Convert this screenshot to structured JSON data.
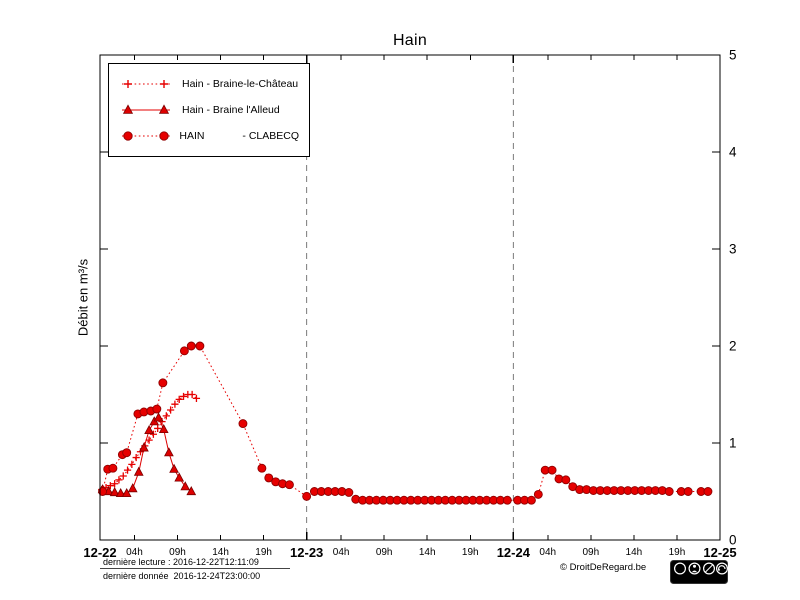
{
  "title": "Hain",
  "y_axis": {
    "label": "Débit en m³/s",
    "ticks": [
      "0",
      "1",
      "2",
      "3",
      "4",
      "5"
    ],
    "min": 0,
    "max": 5
  },
  "x_axis": {
    "major_ticks": [
      {
        "hour": 0,
        "label": "12-22"
      },
      {
        "hour": 24,
        "label": "12-23"
      },
      {
        "hour": 48,
        "label": "12-24"
      },
      {
        "hour": 72,
        "label": "12-25"
      }
    ],
    "minor_ticks": [
      {
        "hour": 4,
        "label": "04h"
      },
      {
        "hour": 9,
        "label": "09h"
      },
      {
        "hour": 14,
        "label": "14h"
      },
      {
        "hour": 19,
        "label": "19h"
      },
      {
        "hour": 28,
        "label": "04h"
      },
      {
        "hour": 33,
        "label": "09h"
      },
      {
        "hour": 38,
        "label": "14h"
      },
      {
        "hour": 43,
        "label": "19h"
      },
      {
        "hour": 52,
        "label": "04h"
      },
      {
        "hour": 57,
        "label": "09h"
      },
      {
        "hour": 62,
        "label": "14h"
      },
      {
        "hour": 67,
        "label": "19h"
      }
    ]
  },
  "legend": [
    {
      "label": "Hain - Braine-le-Château",
      "marker": "plus",
      "line": "dotted"
    },
    {
      "label": "Hain - Braine l'Alleud",
      "marker": "triangle",
      "line": "solid"
    },
    {
      "label": "HAIN             - CLABECQ",
      "marker": "circle",
      "line": "dotted"
    }
  ],
  "footer": {
    "last_reading": "dernière lecture : 2016-12-22T12:11:09",
    "last_data": "dernière donnée  2016-12-24T23:00:00",
    "copyright": "© DroitDeRegard.be",
    "license": {
      "cc": "cc",
      "by": "BY",
      "nc": "NC",
      "sa": "SA"
    }
  },
  "colors": {
    "series_red": "#e60000",
    "marker_edge": "#8f0000",
    "grid": "#6b6b6b",
    "frame": "#000000"
  },
  "chart_data": {
    "type": "line",
    "title": "Hain",
    "xlabel": "",
    "ylabel": "Débit en m³/s",
    "ylim": [
      0,
      5
    ],
    "xlim_hours": [
      0,
      72
    ],
    "x_origin": "2016-12-22 00:00",
    "grid": "vertical dashed lines at day boundaries (12-23, 12-24)",
    "legend_position": "top-left",
    "series": [
      {
        "name": "Hain - Braine-le-Château",
        "marker": "plus",
        "line": "dotted",
        "color": "#e60000",
        "points": [
          [
            0.2,
            0.52
          ],
          [
            0.7,
            0.54
          ],
          [
            1.2,
            0.56
          ],
          [
            1.7,
            0.58
          ],
          [
            2.2,
            0.62
          ],
          [
            2.7,
            0.66
          ],
          [
            3.2,
            0.72
          ],
          [
            3.7,
            0.78
          ],
          [
            4.2,
            0.85
          ],
          [
            4.7,
            0.91
          ],
          [
            5.2,
            0.97
          ],
          [
            5.7,
            1.03
          ],
          [
            6.2,
            1.09
          ],
          [
            6.7,
            1.15
          ],
          [
            7.2,
            1.22
          ],
          [
            7.7,
            1.28
          ],
          [
            8.2,
            1.34
          ],
          [
            8.7,
            1.4
          ],
          [
            9.2,
            1.45
          ],
          [
            9.7,
            1.48
          ],
          [
            10.2,
            1.5
          ],
          [
            10.7,
            1.5
          ],
          [
            11.2,
            1.46
          ]
        ]
      },
      {
        "name": "Hain - Braine l'Alleud",
        "marker": "triangle",
        "line": "solid",
        "color": "#dd0000",
        "points": [
          [
            0.3,
            0.52
          ],
          [
            1.0,
            0.5
          ],
          [
            1.7,
            0.49
          ],
          [
            2.4,
            0.48
          ],
          [
            3.1,
            0.48
          ],
          [
            3.8,
            0.53
          ],
          [
            4.5,
            0.7
          ],
          [
            5.1,
            0.95
          ],
          [
            5.7,
            1.13
          ],
          [
            6.3,
            1.22
          ],
          [
            6.8,
            1.26
          ],
          [
            7.4,
            1.14
          ],
          [
            8.0,
            0.9
          ],
          [
            8.6,
            0.73
          ],
          [
            9.2,
            0.64
          ],
          [
            9.9,
            0.55
          ],
          [
            10.6,
            0.5
          ]
        ]
      },
      {
        "name": "HAIN - CLABECQ",
        "marker": "circle",
        "line": "dotted",
        "color": "#e60000",
        "points": [
          [
            0.3,
            0.5
          ],
          [
            0.9,
            0.73
          ],
          [
            1.5,
            0.74
          ],
          [
            2.6,
            0.88
          ],
          [
            3.1,
            0.9
          ],
          [
            4.4,
            1.3
          ],
          [
            5.1,
            1.32
          ],
          [
            5.9,
            1.33
          ],
          [
            6.6,
            1.35
          ],
          [
            7.3,
            1.62
          ],
          [
            9.8,
            1.95
          ],
          [
            10.6,
            2.0
          ],
          [
            11.6,
            2.0
          ],
          [
            16.6,
            1.2
          ],
          [
            18.8,
            0.74
          ],
          [
            19.6,
            0.64
          ],
          [
            20.4,
            0.6
          ],
          [
            21.2,
            0.58
          ],
          [
            22.0,
            0.57
          ],
          [
            24.0,
            0.45
          ],
          [
            24.9,
            0.5
          ],
          [
            25.7,
            0.5
          ],
          [
            26.5,
            0.5
          ],
          [
            27.3,
            0.5
          ],
          [
            28.1,
            0.5
          ],
          [
            28.9,
            0.49
          ],
          [
            29.7,
            0.42
          ],
          [
            30.5,
            0.41
          ],
          [
            31.3,
            0.41
          ],
          [
            32.1,
            0.41
          ],
          [
            32.9,
            0.41
          ],
          [
            33.7,
            0.41
          ],
          [
            34.5,
            0.41
          ],
          [
            35.3,
            0.41
          ],
          [
            36.1,
            0.41
          ],
          [
            36.9,
            0.41
          ],
          [
            37.7,
            0.41
          ],
          [
            38.5,
            0.41
          ],
          [
            39.3,
            0.41
          ],
          [
            40.1,
            0.41
          ],
          [
            40.9,
            0.41
          ],
          [
            41.7,
            0.41
          ],
          [
            42.5,
            0.41
          ],
          [
            43.3,
            0.41
          ],
          [
            44.1,
            0.41
          ],
          [
            44.9,
            0.41
          ],
          [
            45.7,
            0.41
          ],
          [
            46.5,
            0.41
          ],
          [
            47.3,
            0.41
          ],
          [
            48.5,
            0.41
          ],
          [
            49.3,
            0.41
          ],
          [
            50.1,
            0.41
          ],
          [
            50.9,
            0.47
          ],
          [
            51.7,
            0.72
          ],
          [
            52.5,
            0.72
          ],
          [
            53.3,
            0.63
          ],
          [
            54.1,
            0.62
          ],
          [
            54.9,
            0.55
          ],
          [
            55.7,
            0.52
          ],
          [
            56.5,
            0.52
          ],
          [
            57.3,
            0.51
          ],
          [
            58.1,
            0.51
          ],
          [
            58.9,
            0.51
          ],
          [
            59.7,
            0.51
          ],
          [
            60.5,
            0.51
          ],
          [
            61.3,
            0.51
          ],
          [
            62.1,
            0.51
          ],
          [
            62.9,
            0.51
          ],
          [
            63.7,
            0.51
          ],
          [
            64.5,
            0.51
          ],
          [
            65.3,
            0.51
          ],
          [
            66.1,
            0.5
          ],
          [
            67.5,
            0.5
          ],
          [
            68.3,
            0.5
          ],
          [
            69.8,
            0.5
          ],
          [
            70.6,
            0.5
          ]
        ]
      }
    ]
  }
}
